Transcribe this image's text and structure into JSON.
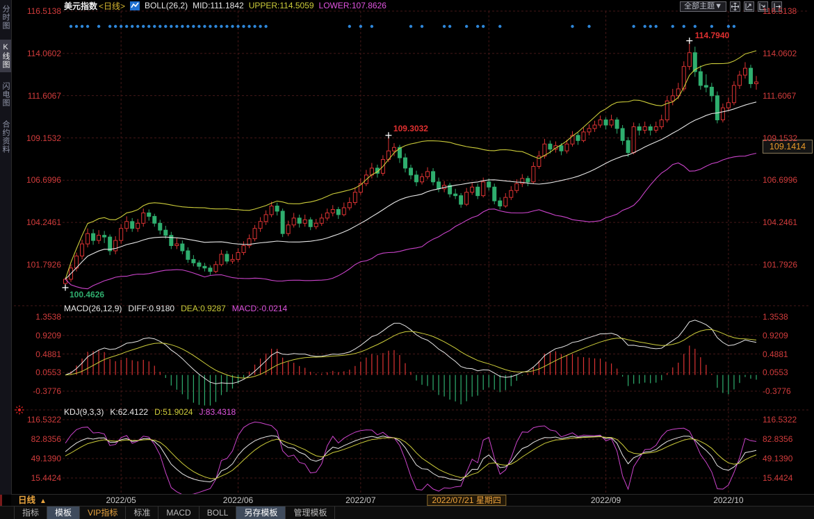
{
  "header": {
    "symbol": "美元指数",
    "period_tag": "<日线>",
    "boll_label": "BOLL(26,2)",
    "mid": "MID:111.1842",
    "upper": "UPPER:114.5059",
    "lower": "LOWER:107.8626"
  },
  "top_right": {
    "theme_button": "全部主题▼"
  },
  "sidebar": {
    "items": [
      {
        "label": "分时图",
        "name": "time-chart",
        "active": false
      },
      {
        "label": "K线图",
        "name": "kline-chart",
        "active": true
      },
      {
        "label": "闪电图",
        "name": "flash-chart",
        "active": false
      },
      {
        "label": "合约资料",
        "name": "contract-info",
        "active": false
      }
    ]
  },
  "macd_panel": {
    "title": "MACD(26,12,9)",
    "diff": "DIFF:0.9180",
    "dea": "DEA:0.9287",
    "macd": "MACD:-0.0214"
  },
  "kdj_panel": {
    "title": "KDJ(9,3,3)",
    "k": "K:62.4122",
    "d": "D:51.9024",
    "j": "J:83.4318"
  },
  "annotations": {
    "high": "114.7940",
    "mid_high": "109.3032",
    "low": "100.4626"
  },
  "price_badge": "109.1414",
  "time_axis": {
    "period": "日线",
    "period_arrow": "▲",
    "ticks": [
      {
        "label": "2022/05",
        "i": 10
      },
      {
        "label": "2022/06",
        "i": 31
      },
      {
        "label": "2022/07",
        "i": 53
      },
      {
        "label": "2022/09",
        "i": 97
      },
      {
        "label": "2022/10",
        "i": 119
      }
    ],
    "highlight": {
      "label": "2022/07/21 星期四",
      "i": 72
    }
  },
  "tabs": [
    {
      "label": "指标",
      "name": "indicator",
      "active": false,
      "vip": false
    },
    {
      "label": "模板",
      "name": "template",
      "active": true,
      "vip": false
    },
    {
      "label": "VIP指标",
      "name": "vip-indicator",
      "active": false,
      "vip": true
    },
    {
      "label": "标准",
      "name": "standard",
      "active": false,
      "vip": false
    },
    {
      "label": "MACD",
      "name": "macd",
      "active": false,
      "vip": false
    },
    {
      "label": "BOLL",
      "name": "boll",
      "active": false,
      "vip": false
    },
    {
      "label": "另存模板",
      "name": "save-as-template",
      "active": true,
      "vip": false
    },
    {
      "label": "管理模板",
      "name": "manage-template",
      "active": false,
      "vip": false
    }
  ],
  "colors": {
    "up": "#dd3333",
    "down": "#2fae6e",
    "boll_mid": "#e8e8e8",
    "boll_upper": "#cdcd3a",
    "boll_lower": "#cc44cc",
    "axis_text": "#d23c3c",
    "dots": "#2e86d8",
    "grid": "#451818",
    "highlight": "#e89a28"
  },
  "chart_data": {
    "type": "candlestick",
    "title": "美元指数 <日线> with BOLL(26,2), MACD(26,12,9), KDJ(9,3,3)",
    "x_range": [
      "2022/04/22",
      "2022/10/13"
    ],
    "main": {
      "ylim": [
        99.5,
        116.9
      ],
      "grid_values": [
        116.5138,
        114.0602,
        111.6067,
        109.1532,
        106.6996,
        104.2461,
        101.7926
      ],
      "candles": [
        [
          100.7,
          101.05,
          100.46,
          100.95
        ],
        [
          100.95,
          101.8,
          100.8,
          101.6
        ],
        [
          101.6,
          102.5,
          101.4,
          102.3
        ],
        [
          102.3,
          103.25,
          102.1,
          103.0
        ],
        [
          103.0,
          103.9,
          102.8,
          103.6
        ],
        [
          103.6,
          103.85,
          102.95,
          103.2
        ],
        [
          103.2,
          103.8,
          103.0,
          103.5
        ],
        [
          103.5,
          103.75,
          103.05,
          103.4
        ],
        [
          103.4,
          103.55,
          102.35,
          102.6
        ],
        [
          102.6,
          103.45,
          102.4,
          103.2
        ],
        [
          103.2,
          104.15,
          103.0,
          103.9
        ],
        [
          103.9,
          104.6,
          103.7,
          104.3
        ],
        [
          104.3,
          104.5,
          103.7,
          103.9
        ],
        [
          103.9,
          104.45,
          103.7,
          104.2
        ],
        [
          104.2,
          105.05,
          104.0,
          104.8
        ],
        [
          104.8,
          105.0,
          104.35,
          104.6
        ],
        [
          104.6,
          104.75,
          104.0,
          104.2
        ],
        [
          104.2,
          104.4,
          103.55,
          103.8
        ],
        [
          103.8,
          104.05,
          103.3,
          103.5
        ],
        [
          103.5,
          103.7,
          102.7,
          102.9
        ],
        [
          102.9,
          103.35,
          102.7,
          103.0
        ],
        [
          103.0,
          103.2,
          102.4,
          102.6
        ],
        [
          102.6,
          102.8,
          101.9,
          102.1
        ],
        [
          102.1,
          102.35,
          101.7,
          101.9
        ],
        [
          101.9,
          102.05,
          101.5,
          101.7
        ],
        [
          101.7,
          101.9,
          101.4,
          101.6
        ],
        [
          101.6,
          101.75,
          101.2,
          101.4
        ],
        [
          101.4,
          102.0,
          101.3,
          101.8
        ],
        [
          101.8,
          102.65,
          101.7,
          102.4
        ],
        [
          102.4,
          102.6,
          101.85,
          102.0
        ],
        [
          102.0,
          102.4,
          101.85,
          102.1
        ],
        [
          102.1,
          102.75,
          101.95,
          102.5
        ],
        [
          102.5,
          103.15,
          102.35,
          102.9
        ],
        [
          102.9,
          103.55,
          102.75,
          103.3
        ],
        [
          103.3,
          104.1,
          103.15,
          103.9
        ],
        [
          103.9,
          104.55,
          103.7,
          104.3
        ],
        [
          104.3,
          104.95,
          104.1,
          104.7
        ],
        [
          104.7,
          105.45,
          104.55,
          105.2
        ],
        [
          105.2,
          105.4,
          104.65,
          104.9
        ],
        [
          104.9,
          105.05,
          103.4,
          103.6
        ],
        [
          103.6,
          104.35,
          103.45,
          104.1
        ],
        [
          104.1,
          104.8,
          103.95,
          104.5
        ],
        [
          104.5,
          104.7,
          103.95,
          104.2
        ],
        [
          104.2,
          104.7,
          104.0,
          104.4
        ],
        [
          104.4,
          104.55,
          103.8,
          104.0
        ],
        [
          104.0,
          104.45,
          103.85,
          104.2
        ],
        [
          104.2,
          104.75,
          104.05,
          104.5
        ],
        [
          104.5,
          105.05,
          104.35,
          104.8
        ],
        [
          104.8,
          105.25,
          104.6,
          105.0
        ],
        [
          105.0,
          105.15,
          104.45,
          104.7
        ],
        [
          104.7,
          105.4,
          104.6,
          105.1
        ],
        [
          105.1,
          105.7,
          104.95,
          105.4
        ],
        [
          105.4,
          106.3,
          105.25,
          106.0
        ],
        [
          106.0,
          106.8,
          105.85,
          106.5
        ],
        [
          106.5,
          107.3,
          106.35,
          107.0
        ],
        [
          107.0,
          107.7,
          106.8,
          107.4
        ],
        [
          107.4,
          107.6,
          106.85,
          107.1
        ],
        [
          107.1,
          108.15,
          106.95,
          107.9
        ],
        [
          107.9,
          109.3,
          107.75,
          108.4
        ],
        [
          108.4,
          108.85,
          108.1,
          108.6
        ],
        [
          108.6,
          108.75,
          107.7,
          108.0
        ],
        [
          108.0,
          108.25,
          107.15,
          107.4
        ],
        [
          107.4,
          107.6,
          106.75,
          107.0
        ],
        [
          107.0,
          107.25,
          106.35,
          106.6
        ],
        [
          106.6,
          107.1,
          106.45,
          106.9
        ],
        [
          106.9,
          107.45,
          106.75,
          107.2
        ],
        [
          107.2,
          107.4,
          106.4,
          106.6
        ],
        [
          106.6,
          106.85,
          106.0,
          106.2
        ],
        [
          106.2,
          106.65,
          106.0,
          106.4
        ],
        [
          106.4,
          106.55,
          105.7,
          105.9
        ],
        [
          105.9,
          106.2,
          105.6,
          105.8
        ],
        [
          105.8,
          105.95,
          105.1,
          105.3
        ],
        [
          105.3,
          106.25,
          105.2,
          106.0
        ],
        [
          106.0,
          106.55,
          105.85,
          106.3
        ],
        [
          106.3,
          106.5,
          105.6,
          105.8
        ],
        [
          105.8,
          106.85,
          105.7,
          106.6
        ],
        [
          106.6,
          106.8,
          106.1,
          106.3
        ],
        [
          106.3,
          106.5,
          105.3,
          105.5
        ],
        [
          105.5,
          105.7,
          105.0,
          105.2
        ],
        [
          105.2,
          105.95,
          105.1,
          105.7
        ],
        [
          105.7,
          106.35,
          105.55,
          106.1
        ],
        [
          106.1,
          106.75,
          105.95,
          106.5
        ],
        [
          106.5,
          107.05,
          106.3,
          106.8
        ],
        [
          106.8,
          106.95,
          106.35,
          106.6
        ],
        [
          106.6,
          107.75,
          106.5,
          107.5
        ],
        [
          107.5,
          108.4,
          107.35,
          108.1
        ],
        [
          108.1,
          109.1,
          107.95,
          108.8
        ],
        [
          108.8,
          109.0,
          108.25,
          108.5
        ],
        [
          108.5,
          108.95,
          108.3,
          108.7
        ],
        [
          108.7,
          108.85,
          108.15,
          108.4
        ],
        [
          108.4,
          109.05,
          108.25,
          108.8
        ],
        [
          108.8,
          109.55,
          108.65,
          109.3
        ],
        [
          109.3,
          109.45,
          108.75,
          109.0
        ],
        [
          109.0,
          109.75,
          108.9,
          109.5
        ],
        [
          109.5,
          109.95,
          109.3,
          109.7
        ],
        [
          109.7,
          110.15,
          109.5,
          109.9
        ],
        [
          109.9,
          110.45,
          109.75,
          110.2
        ],
        [
          110.2,
          110.35,
          109.65,
          109.9
        ],
        [
          109.9,
          110.5,
          109.75,
          110.2
        ],
        [
          110.2,
          110.35,
          109.4,
          109.7
        ],
        [
          109.7,
          109.9,
          108.75,
          109.0
        ],
        [
          109.0,
          109.2,
          108.05,
          108.3
        ],
        [
          108.3,
          110.05,
          108.2,
          109.8
        ],
        [
          109.8,
          110.0,
          109.3,
          109.6
        ],
        [
          109.6,
          110.1,
          109.4,
          109.8
        ],
        [
          109.8,
          109.95,
          109.3,
          109.6
        ],
        [
          109.6,
          110.1,
          109.45,
          109.8
        ],
        [
          109.8,
          110.5,
          109.65,
          110.2
        ],
        [
          110.2,
          111.6,
          110.05,
          111.3
        ],
        [
          111.3,
          112.0,
          111.05,
          111.6
        ],
        [
          111.6,
          112.35,
          111.4,
          112.0
        ],
        [
          112.0,
          113.6,
          111.85,
          113.3
        ],
        [
          113.3,
          114.79,
          113.1,
          114.1
        ],
        [
          114.1,
          114.45,
          112.7,
          113.0
        ],
        [
          113.0,
          113.35,
          111.95,
          112.2
        ],
        [
          112.2,
          112.85,
          111.8,
          112.1
        ],
        [
          112.1,
          112.35,
          111.25,
          111.6
        ],
        [
          111.6,
          111.85,
          110.0,
          110.2
        ],
        [
          110.2,
          111.15,
          110.05,
          110.9
        ],
        [
          110.9,
          111.5,
          110.7,
          111.2
        ],
        [
          111.2,
          112.45,
          111.05,
          112.2
        ],
        [
          112.2,
          113.05,
          112.0,
          112.8
        ],
        [
          112.8,
          113.55,
          112.6,
          113.2
        ],
        [
          113.2,
          113.4,
          112.05,
          112.3
        ],
        [
          112.3,
          112.75,
          111.95,
          112.4
        ]
      ]
    },
    "boll": {
      "period": 26,
      "width": 2,
      "mid_last": 111.1842,
      "upper_last": 114.5059,
      "lower_last": 107.8626
    },
    "macd": {
      "params": [
        26,
        12,
        9
      ],
      "diff_last": 0.918,
      "dea_last": 0.9287,
      "macd_last": -0.0214,
      "grid_values": [
        1.3538,
        0.9209,
        0.4881,
        0.0553,
        -0.3776
      ]
    },
    "kdj": {
      "params": [
        9,
        3,
        3
      ],
      "k_last": 62.4122,
      "d_last": 51.9024,
      "j_last": 83.4318,
      "grid_values": [
        116.5322,
        82.8356,
        49.139,
        15.4424
      ]
    },
    "annotation_anchors": {
      "high_i": 112,
      "high_v": 114.794,
      "mid_i": 58,
      "mid_v": 109.3032,
      "low_i": 0,
      "low_v": 100.4626
    },
    "crosshair": {
      "price": 109.1414,
      "date_index": 72
    },
    "month_grid_indices": [
      10,
      31,
      53,
      76,
      97,
      119
    ],
    "event_dot_indices": [
      1,
      2,
      3,
      4,
      6,
      8,
      9,
      10,
      11,
      12,
      13,
      14,
      15,
      16,
      17,
      18,
      19,
      20,
      21,
      22,
      23,
      24,
      25,
      26,
      27,
      28,
      29,
      30,
      31,
      32,
      33,
      34,
      35,
      36,
      51,
      53,
      55,
      62,
      64,
      68,
      69,
      72,
      74,
      75,
      78,
      91,
      94,
      102,
      104,
      105,
      106,
      109,
      111,
      113,
      116,
      119,
      120
    ]
  }
}
